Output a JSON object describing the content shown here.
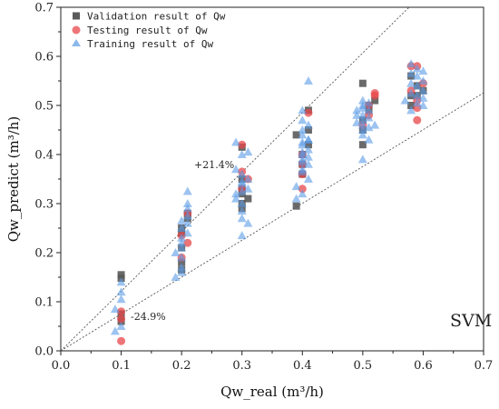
{
  "chart_data": {
    "type": "scatter",
    "title": "",
    "xlabel": "Qw_real (m³/h)",
    "ylabel": "Qw_predict (m³/h)",
    "xlim": [
      0,
      0.7
    ],
    "ylim": [
      0,
      0.7
    ],
    "xticks": [
      "0.0",
      "0.1",
      "0.2",
      "0.3",
      "0.4",
      "0.5",
      "0.6",
      "0.7"
    ],
    "yticks": [
      "0.0",
      "0.1",
      "0.2",
      "0.3",
      "0.4",
      "0.5",
      "0.6",
      "0.7"
    ],
    "legend_position": "top-left",
    "model_label": "SVM",
    "reference_lines": [
      {
        "label": "+21.4%",
        "slope": 1.214
      },
      {
        "label": "-24.9%",
        "slope": 0.751
      }
    ],
    "series": [
      {
        "name": "Validation result of Qw",
        "marker": "square",
        "color": "#5a5a5a",
        "points": [
          [
            0.1,
            0.155
          ],
          [
            0.1,
            0.148
          ],
          [
            0.1,
            0.075
          ],
          [
            0.1,
            0.06
          ],
          [
            0.2,
            0.24
          ],
          [
            0.2,
            0.21
          ],
          [
            0.2,
            0.18
          ],
          [
            0.2,
            0.165
          ],
          [
            0.21,
            0.27
          ],
          [
            0.21,
            0.28
          ],
          [
            0.2,
            0.25
          ],
          [
            0.3,
            0.415
          ],
          [
            0.3,
            0.33
          ],
          [
            0.3,
            0.3
          ],
          [
            0.3,
            0.29
          ],
          [
            0.31,
            0.31
          ],
          [
            0.3,
            0.35
          ],
          [
            0.3,
            0.32
          ],
          [
            0.39,
            0.295
          ],
          [
            0.39,
            0.44
          ],
          [
            0.4,
            0.38
          ],
          [
            0.41,
            0.49
          ],
          [
            0.41,
            0.45
          ],
          [
            0.4,
            0.4
          ],
          [
            0.4,
            0.36
          ],
          [
            0.41,
            0.42
          ],
          [
            0.5,
            0.545
          ],
          [
            0.5,
            0.42
          ],
          [
            0.5,
            0.47
          ],
          [
            0.51,
            0.5
          ],
          [
            0.51,
            0.49
          ],
          [
            0.5,
            0.45
          ],
          [
            0.52,
            0.51
          ],
          [
            0.58,
            0.56
          ],
          [
            0.59,
            0.52
          ],
          [
            0.58,
            0.5
          ],
          [
            0.59,
            0.54
          ],
          [
            0.6,
            0.53
          ],
          [
            0.58,
            0.52
          ]
        ]
      },
      {
        "name": "Testing result of Qw",
        "marker": "circle",
        "color": "#e8474a",
        "points": [
          [
            0.1,
            0.08
          ],
          [
            0.1,
            0.065
          ],
          [
            0.1,
            0.02
          ],
          [
            0.2,
            0.235
          ],
          [
            0.21,
            0.22
          ],
          [
            0.21,
            0.28
          ],
          [
            0.2,
            0.19
          ],
          [
            0.3,
            0.42
          ],
          [
            0.3,
            0.365
          ],
          [
            0.31,
            0.35
          ],
          [
            0.3,
            0.33
          ],
          [
            0.41,
            0.485
          ],
          [
            0.4,
            0.4
          ],
          [
            0.4,
            0.38
          ],
          [
            0.4,
            0.33
          ],
          [
            0.4,
            0.36
          ],
          [
            0.51,
            0.5
          ],
          [
            0.52,
            0.525
          ],
          [
            0.51,
            0.48
          ],
          [
            0.5,
            0.46
          ],
          [
            0.52,
            0.52
          ],
          [
            0.58,
            0.58
          ],
          [
            0.59,
            0.58
          ],
          [
            0.58,
            0.53
          ],
          [
            0.59,
            0.51
          ],
          [
            0.59,
            0.47
          ],
          [
            0.6,
            0.545
          ],
          [
            0.59,
            0.495
          ]
        ]
      },
      {
        "name": "Training result of Qw",
        "marker": "triangle",
        "color": "#5b9be6",
        "points": [
          [
            0.1,
            0.14
          ],
          [
            0.1,
            0.12
          ],
          [
            0.1,
            0.105
          ],
          [
            0.09,
            0.085
          ],
          [
            0.09,
            0.04
          ],
          [
            0.1,
            0.05
          ],
          [
            0.19,
            0.15
          ],
          [
            0.2,
            0.16
          ],
          [
            0.2,
            0.17
          ],
          [
            0.2,
            0.19
          ],
          [
            0.2,
            0.21
          ],
          [
            0.2,
            0.22
          ],
          [
            0.2,
            0.23
          ],
          [
            0.21,
            0.24
          ],
          [
            0.2,
            0.25
          ],
          [
            0.21,
            0.26
          ],
          [
            0.2,
            0.265
          ],
          [
            0.21,
            0.29
          ],
          [
            0.21,
            0.3
          ],
          [
            0.21,
            0.325
          ],
          [
            0.19,
            0.2
          ],
          [
            0.21,
            0.275
          ],
          [
            0.29,
            0.425
          ],
          [
            0.3,
            0.4
          ],
          [
            0.31,
            0.405
          ],
          [
            0.29,
            0.37
          ],
          [
            0.3,
            0.36
          ],
          [
            0.3,
            0.345
          ],
          [
            0.3,
            0.34
          ],
          [
            0.31,
            0.33
          ],
          [
            0.3,
            0.325
          ],
          [
            0.29,
            0.31
          ],
          [
            0.3,
            0.3
          ],
          [
            0.3,
            0.285
          ],
          [
            0.3,
            0.27
          ],
          [
            0.31,
            0.26
          ],
          [
            0.3,
            0.235
          ],
          [
            0.31,
            0.35
          ],
          [
            0.29,
            0.32
          ],
          [
            0.4,
            0.49
          ],
          [
            0.41,
            0.55
          ],
          [
            0.4,
            0.47
          ],
          [
            0.41,
            0.46
          ],
          [
            0.4,
            0.45
          ],
          [
            0.4,
            0.44
          ],
          [
            0.41,
            0.43
          ],
          [
            0.4,
            0.425
          ],
          [
            0.4,
            0.42
          ],
          [
            0.41,
            0.41
          ],
          [
            0.4,
            0.405
          ],
          [
            0.4,
            0.4
          ],
          [
            0.41,
            0.395
          ],
          [
            0.4,
            0.39
          ],
          [
            0.4,
            0.385
          ],
          [
            0.41,
            0.38
          ],
          [
            0.4,
            0.37
          ],
          [
            0.4,
            0.365
          ],
          [
            0.41,
            0.35
          ],
          [
            0.39,
            0.335
          ],
          [
            0.4,
            0.32
          ],
          [
            0.39,
            0.31
          ],
          [
            0.41,
            0.43
          ],
          [
            0.49,
            0.49
          ],
          [
            0.5,
            0.51
          ],
          [
            0.51,
            0.505
          ],
          [
            0.5,
            0.5
          ],
          [
            0.5,
            0.495
          ],
          [
            0.51,
            0.49
          ],
          [
            0.5,
            0.48
          ],
          [
            0.51,
            0.475
          ],
          [
            0.5,
            0.47
          ],
          [
            0.49,
            0.465
          ],
          [
            0.5,
            0.46
          ],
          [
            0.51,
            0.455
          ],
          [
            0.5,
            0.45
          ],
          [
            0.5,
            0.44
          ],
          [
            0.51,
            0.43
          ],
          [
            0.5,
            0.39
          ],
          [
            0.52,
            0.46
          ],
          [
            0.49,
            0.48
          ],
          [
            0.58,
            0.585
          ],
          [
            0.59,
            0.575
          ],
          [
            0.6,
            0.57
          ],
          [
            0.58,
            0.565
          ],
          [
            0.59,
            0.56
          ],
          [
            0.6,
            0.55
          ],
          [
            0.58,
            0.545
          ],
          [
            0.59,
            0.54
          ],
          [
            0.6,
            0.53
          ],
          [
            0.58,
            0.525
          ],
          [
            0.59,
            0.52
          ],
          [
            0.6,
            0.515
          ],
          [
            0.57,
            0.51
          ],
          [
            0.59,
            0.505
          ],
          [
            0.6,
            0.5
          ],
          [
            0.58,
            0.49
          ]
        ]
      }
    ]
  }
}
